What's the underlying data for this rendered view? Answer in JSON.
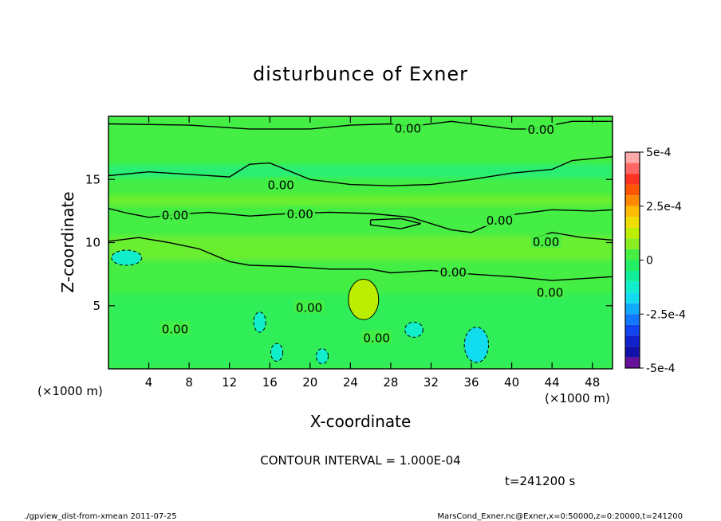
{
  "chart_data": {
    "type": "heatmap",
    "title": "disturbunce of Exner",
    "xlabel": "X-coordinate",
    "ylabel": "Z-coordinate",
    "x_unit": "(×1000 m)",
    "z_unit": "(×1000 m)",
    "xlim": [
      0,
      50
    ],
    "ylim": [
      0,
      20
    ],
    "x_ticks": [
      4,
      8,
      12,
      16,
      20,
      24,
      28,
      32,
      36,
      40,
      44,
      48
    ],
    "y_ticks": [
      5,
      10,
      15
    ],
    "colorbar": {
      "range": [
        -0.0005,
        0.0005
      ],
      "ticks": [
        "5e-4",
        "2.5e-4",
        "0",
        "-2.5e-4",
        "-5e-4"
      ],
      "tick_values": [
        0.0005,
        0.00025,
        0,
        -0.00025,
        -0.0005
      ],
      "bins": [
        {
          "from": 0.00045,
          "to": 0.0005,
          "color": "#ffaaaa"
        },
        {
          "from": 0.0004,
          "to": 0.00045,
          "color": "#ff6666"
        },
        {
          "from": 0.00035,
          "to": 0.0004,
          "color": "#ff3322"
        },
        {
          "from": 0.0003,
          "to": 0.00035,
          "color": "#ff5500"
        },
        {
          "from": 0.00025,
          "to": 0.0003,
          "color": "#ff8800"
        },
        {
          "from": 0.0002,
          "to": 0.00025,
          "color": "#ffbb00"
        },
        {
          "from": 0.00015,
          "to": 0.0002,
          "color": "#eedd00"
        },
        {
          "from": 0.0001,
          "to": 0.00015,
          "color": "#bbee00"
        },
        {
          "from": 5e-05,
          "to": 0.0001,
          "color": "#88ee22"
        },
        {
          "from": 0,
          "to": 5e-05,
          "color": "#44ee44"
        },
        {
          "from": -5e-05,
          "to": 0,
          "color": "#22ee66"
        },
        {
          "from": -0.0001,
          "to": -5e-05,
          "color": "#11ee99"
        },
        {
          "from": -0.00015,
          "to": -0.0001,
          "color": "#11eecc"
        },
        {
          "from": -0.0002,
          "to": -0.00015,
          "color": "#11ddee"
        },
        {
          "from": -0.00025,
          "to": -0.0002,
          "color": "#11aaff"
        },
        {
          "from": -0.0003,
          "to": -0.00025,
          "color": "#1177ff"
        },
        {
          "from": -0.00035,
          "to": -0.0003,
          "color": "#1144ee"
        },
        {
          "from": -0.0004,
          "to": -0.00035,
          "color": "#1122cc"
        },
        {
          "from": -0.00045,
          "to": -0.0004,
          "color": "#1111aa"
        },
        {
          "from": -0.0005,
          "to": -0.00045,
          "color": "#661199"
        }
      ]
    },
    "contour_interval": "CONTOUR INTERVAL = 1.000E-04",
    "contour_label": "0.00",
    "contour_lines": [
      [
        [
          0,
          19.4
        ],
        [
          8,
          19.3
        ],
        [
          14,
          19.0
        ],
        [
          20,
          19.0
        ],
        [
          24,
          19.3
        ],
        [
          28,
          19.4
        ],
        [
          30,
          19.2
        ],
        [
          34,
          19.6
        ],
        [
          40,
          19.0
        ],
        [
          42,
          19.0
        ],
        [
          46,
          19.6
        ],
        [
          50,
          19.6
        ]
      ],
      [
        [
          0,
          15.3
        ],
        [
          4,
          15.6
        ],
        [
          8,
          15.4
        ],
        [
          12,
          15.2
        ],
        [
          14,
          16.2
        ],
        [
          16,
          16.3
        ],
        [
          20,
          15.0
        ],
        [
          24,
          14.6
        ],
        [
          28,
          14.5
        ],
        [
          32,
          14.6
        ],
        [
          36,
          15.0
        ],
        [
          40,
          15.5
        ],
        [
          44,
          15.8
        ],
        [
          46,
          16.5
        ],
        [
          50,
          16.8
        ]
      ],
      [
        [
          0,
          12.7
        ],
        [
          2,
          12.3
        ],
        [
          4,
          12.0
        ],
        [
          8,
          12.3
        ],
        [
          10,
          12.4
        ],
        [
          14,
          12.1
        ],
        [
          18,
          12.3
        ],
        [
          22,
          12.4
        ],
        [
          26,
          12.3
        ],
        [
          30,
          12.0
        ],
        [
          34,
          11.0
        ],
        [
          36,
          10.8
        ],
        [
          38,
          11.5
        ],
        [
          40,
          12.2
        ],
        [
          44,
          12.6
        ],
        [
          48,
          12.5
        ],
        [
          50,
          12.6
        ]
      ],
      [
        [
          0,
          10.1
        ],
        [
          3,
          10.4
        ],
        [
          6,
          10.0
        ],
        [
          9,
          9.5
        ],
        [
          12,
          8.5
        ],
        [
          14,
          8.2
        ],
        [
          18,
          8.1
        ],
        [
          22,
          7.9
        ],
        [
          26,
          7.9
        ],
        [
          28,
          7.6
        ],
        [
          32,
          7.8
        ],
        [
          36,
          7.5
        ],
        [
          40,
          7.3
        ],
        [
          44,
          7.0
        ],
        [
          48,
          7.2
        ],
        [
          50,
          7.3
        ]
      ],
      [
        [
          42,
          10.3
        ],
        [
          44,
          10.8
        ],
        [
          47,
          10.4
        ],
        [
          50,
          10.2
        ]
      ],
      [
        [
          26,
          11.8
        ],
        [
          29,
          11.9
        ],
        [
          31,
          11.5
        ],
        [
          29,
          11.1
        ],
        [
          26,
          11.4
        ],
        [
          26,
          11.8
        ]
      ]
    ],
    "contour_label_positions": [
      [
        29.7,
        19.1
      ],
      [
        42.9,
        19.0
      ],
      [
        17.1,
        14.6
      ],
      [
        6.6,
        12.2
      ],
      [
        19.0,
        12.3
      ],
      [
        38.8,
        11.8
      ],
      [
        43.4,
        10.1
      ],
      [
        34.2,
        7.7
      ],
      [
        43.8,
        6.1
      ],
      [
        6.6,
        3.2
      ],
      [
        19.9,
        4.9
      ],
      [
        26.6,
        2.5
      ]
    ],
    "plumes": [
      {
        "x": 25.3,
        "z": 5.5,
        "rx": 1.5,
        "rz": 1.6,
        "v": 0.00011
      },
      {
        "x": 36.5,
        "z": 1.9,
        "rx": 1.2,
        "rz": 1.4,
        "v": -0.00016
      },
      {
        "x": 30.3,
        "z": 3.1,
        "rx": 0.9,
        "rz": 0.6,
        "v": -0.00014
      },
      {
        "x": 15.0,
        "z": 3.7,
        "rx": 0.6,
        "rz": 0.8,
        "v": -0.00012
      },
      {
        "x": 16.7,
        "z": 1.3,
        "rx": 0.6,
        "rz": 0.7,
        "v": -0.00012
      },
      {
        "x": 21.2,
        "z": 1.0,
        "rx": 0.6,
        "rz": 0.6,
        "v": -0.00012
      },
      {
        "x": 1.8,
        "z": 8.8,
        "rx": 1.5,
        "rz": 0.6,
        "v": -0.00011
      }
    ]
  },
  "timestamp": "t=241200 s",
  "footer": {
    "left": "./gpview_dist-from-xmean   2011-07-25",
    "right": "MarsCond_Exner.nc@Exner,x=0:50000,z=0:20000,t=241200"
  }
}
